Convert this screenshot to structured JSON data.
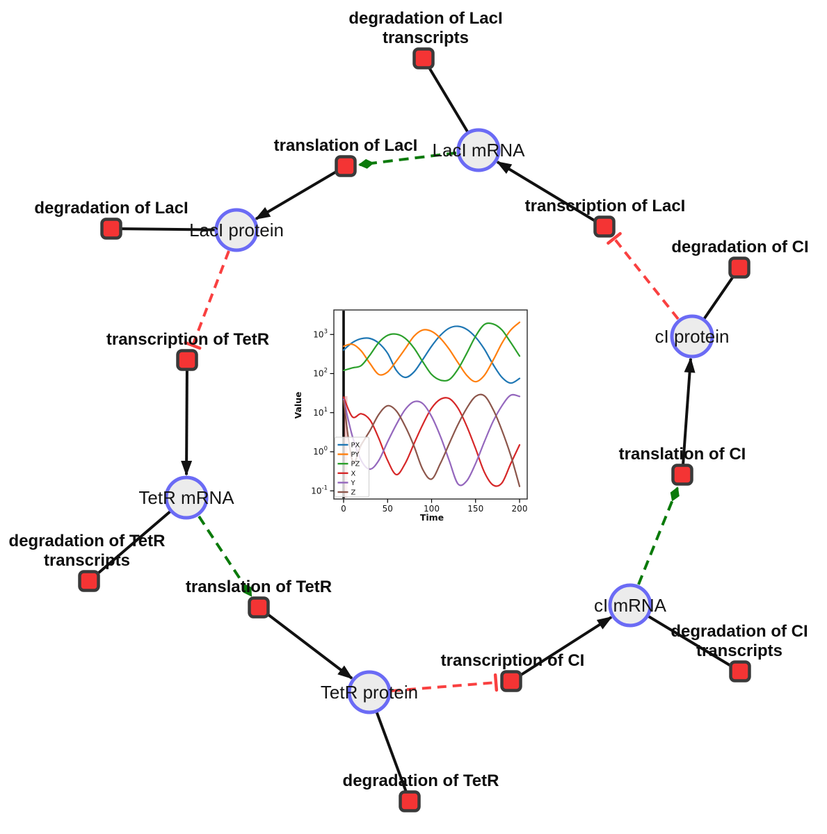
{
  "network": {
    "species_labels": {
      "laci_mrna": "LacI mRNA",
      "laci_protein": "LacI protein",
      "ci_protein": "cI protein",
      "tetr_mrna": "TetR mRNA",
      "ci_mrna": "cI mRNA",
      "tetr_protein": "TetR protein"
    },
    "reaction_labels": {
      "deg_laci_tr": [
        "degradation of LacI",
        "transcripts"
      ],
      "transl_laci": [
        "translation of LacI"
      ],
      "deg_laci": [
        "degradation of LacI"
      ],
      "transcr_laci": [
        "transcription of LacI"
      ],
      "deg_ci": [
        "degradation of CI"
      ],
      "transcr_tetr": [
        "transcription of TetR"
      ],
      "transl_ci": [
        "translation of CI"
      ],
      "deg_tetr_tr": [
        "degradation of TetR",
        "transcripts"
      ],
      "transl_tetr": [
        "translation of TetR"
      ],
      "deg_ci_tr": [
        "degradation of CI",
        "transcripts"
      ],
      "transcr_ci": [
        "transcription of CI"
      ],
      "deg_tetr": [
        "degradation of TetR"
      ]
    },
    "colors": {
      "species_fill": "#ececec",
      "species_border": "#6b6bf5",
      "reaction_fill": "#f43434",
      "reaction_border": "#3a3a3a",
      "edge": "#111111",
      "activation_edge": "#0b7a0b",
      "inhibition_edge": "#f94040"
    }
  },
  "chart_data": {
    "type": "line",
    "title": "",
    "xlabel": "Time",
    "ylabel": "Value",
    "x_ticks": [
      0,
      50,
      100,
      150,
      200
    ],
    "y_scale": "log",
    "y_tick_exponents": [
      -1,
      0,
      1,
      2,
      3
    ],
    "xlim": [
      -8,
      210
    ],
    "ylim": [
      0.07,
      4000
    ],
    "grid": false,
    "legend_position": "lower left",
    "vline_x": 0,
    "x": [
      0,
      10,
      20,
      30,
      40,
      50,
      60,
      70,
      80,
      90,
      100,
      110,
      120,
      130,
      140,
      150,
      160,
      170,
      180,
      190,
      200
    ],
    "series": [
      {
        "name": "PX",
        "color": "#1f77b4",
        "values": [
          400,
          620,
          780,
          790,
          600,
          330,
          120,
          80,
          110,
          230,
          500,
          950,
          1450,
          1620,
          1350,
          850,
          420,
          170,
          80,
          57,
          75
        ]
      },
      {
        "name": "PY",
        "color": "#ff7f0e",
        "values": [
          500,
          560,
          380,
          180,
          95,
          110,
          210,
          430,
          900,
          1300,
          1200,
          800,
          420,
          190,
          90,
          62,
          90,
          220,
          600,
          1300,
          2050
        ]
      },
      {
        "name": "PZ",
        "color": "#2ca02c",
        "values": [
          120,
          140,
          160,
          300,
          620,
          950,
          1020,
          800,
          450,
          200,
          95,
          68,
          70,
          130,
          330,
          900,
          1800,
          1850,
          1300,
          620,
          280
        ]
      },
      {
        "name": "X",
        "color": "#d62728",
        "values": [
          25,
          7.8,
          9.4,
          6.5,
          2.2,
          0.6,
          0.26,
          0.5,
          1.6,
          5,
          13,
          22,
          23,
          13,
          4.5,
          1.2,
          0.3,
          0.14,
          0.16,
          0.5,
          1.5
        ]
      },
      {
        "name": "Y",
        "color": "#9467bd",
        "values": [
          22,
          2.5,
          0.6,
          0.36,
          0.6,
          1.8,
          5,
          12,
          19,
          17,
          8,
          2.5,
          0.6,
          0.15,
          0.18,
          0.5,
          1.8,
          6,
          15,
          28,
          26
        ]
      },
      {
        "name": "Z",
        "color": "#8c564b",
        "values": [
          20,
          0.6,
          1.5,
          3.5,
          9,
          15,
          11,
          4.5,
          1.4,
          0.35,
          0.2,
          0.5,
          1.6,
          5,
          13,
          26,
          27,
          12,
          3.5,
          0.8,
          0.13
        ]
      }
    ]
  }
}
